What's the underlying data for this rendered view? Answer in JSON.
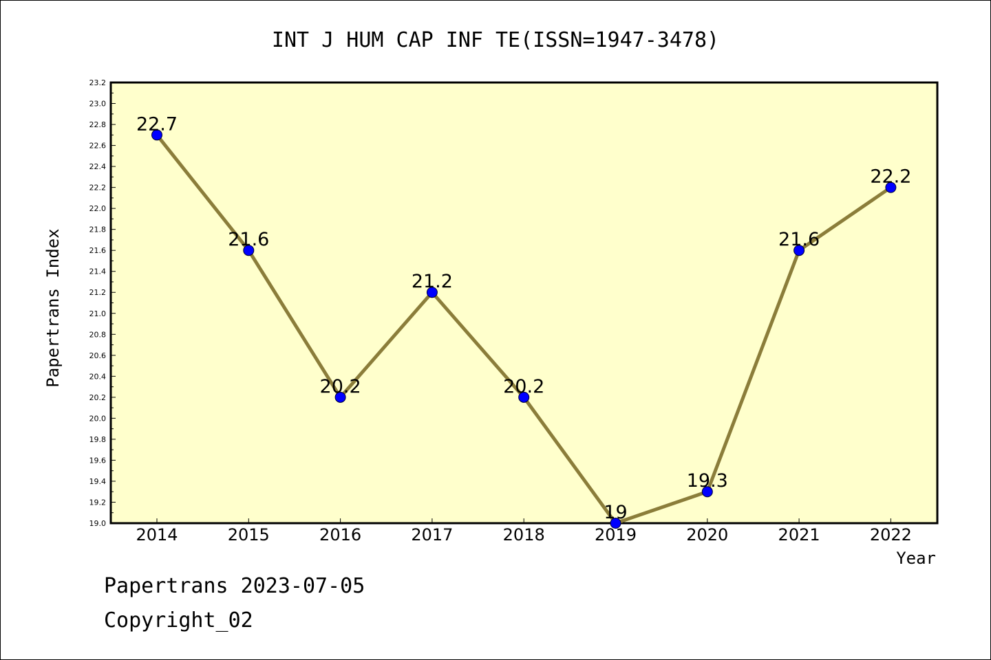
{
  "chart_data": {
    "type": "line",
    "title": "INT J HUM CAP INF TE(ISSN=1947-3478)",
    "xlabel": "Year",
    "ylabel": "Papertrans Index",
    "categories": [
      "2014",
      "2015",
      "2016",
      "2017",
      "2018",
      "2019",
      "2020",
      "2021",
      "2022"
    ],
    "values": [
      22.7,
      21.6,
      20.2,
      21.2,
      20.2,
      19,
      19.3,
      21.6,
      22.2
    ],
    "data_labels": [
      "22.7",
      "21.6",
      "20.2",
      "21.2",
      "20.2",
      "19",
      "19.3",
      "21.6",
      "22.2"
    ],
    "ylim": [
      19.0,
      23.2
    ],
    "yticks": [
      "19.0",
      "19.2",
      "19.4",
      "19.6",
      "19.8",
      "20.0",
      "20.2",
      "20.4",
      "20.6",
      "20.8",
      "21.0",
      "21.2",
      "21.4",
      "21.6",
      "21.8",
      "22.0",
      "22.2",
      "22.4",
      "22.6",
      "22.8",
      "23.0",
      "23.2"
    ],
    "grid": false,
    "colors": {
      "plot_background": "#ffffcc",
      "line": "#8b7d3a",
      "marker": "#0000ff"
    }
  },
  "footer": {
    "line1": "Papertrans 2023-07-05",
    "line2": "Copyright_02"
  }
}
